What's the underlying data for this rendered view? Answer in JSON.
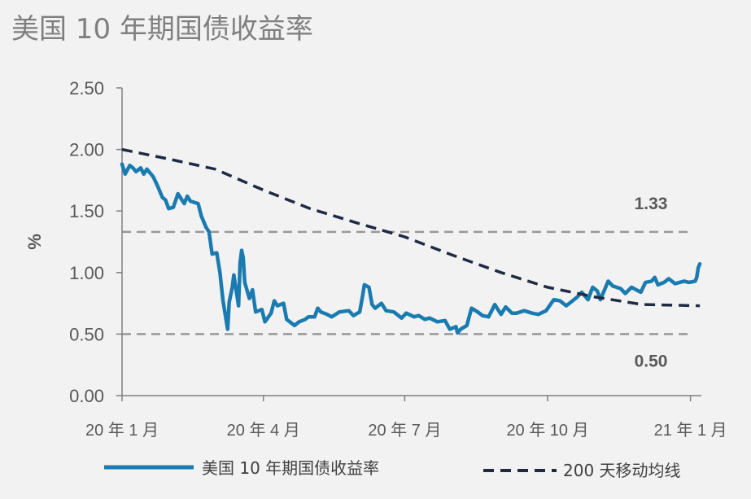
{
  "chart_data": {
    "type": "line",
    "title": "美国 10 年期国债收益率",
    "ylabel": "%",
    "ylim": [
      0,
      2.5
    ],
    "y_ticks": [
      "0.00",
      "0.50",
      "1.00",
      "1.50",
      "2.00",
      "2.50"
    ],
    "x_tick_labels": [
      "20 年 1 月",
      "20 年 4 月",
      "20 年 7 月",
      "20 年 10 月",
      "21 年 1 月"
    ],
    "x_ticks": [
      "2020-01-01",
      "2020-04-01",
      "2020-07-01",
      "2020-10-01",
      "2021-01-01"
    ],
    "xlim": [
      "2020-01-01",
      "2021-01-08"
    ],
    "grid": false,
    "legend_position": "bottom",
    "reference_lines": [
      {
        "value": 1.33,
        "label": "1.33"
      },
      {
        "value": 0.5,
        "label": "0.50"
      }
    ],
    "series": [
      {
        "name": "美国 10 年期国债收益率",
        "color": "#1a7bb0",
        "style": "solid",
        "points": [
          [
            "2020-01-01",
            1.88
          ],
          [
            "2020-01-03",
            1.8
          ],
          [
            "2020-01-06",
            1.87
          ],
          [
            "2020-01-08",
            1.85
          ],
          [
            "2020-01-10",
            1.82
          ],
          [
            "2020-01-13",
            1.85
          ],
          [
            "2020-01-15",
            1.8
          ],
          [
            "2020-01-17",
            1.84
          ],
          [
            "2020-01-21",
            1.78
          ],
          [
            "2020-01-24",
            1.7
          ],
          [
            "2020-01-27",
            1.61
          ],
          [
            "2020-01-29",
            1.59
          ],
          [
            "2020-01-31",
            1.52
          ],
          [
            "2020-02-03",
            1.53
          ],
          [
            "2020-02-06",
            1.64
          ],
          [
            "2020-02-10",
            1.56
          ],
          [
            "2020-02-12",
            1.62
          ],
          [
            "2020-02-14",
            1.58
          ],
          [
            "2020-02-19",
            1.56
          ],
          [
            "2020-02-21",
            1.46
          ],
          [
            "2020-02-24",
            1.37
          ],
          [
            "2020-02-26",
            1.33
          ],
          [
            "2020-02-28",
            1.15
          ],
          [
            "2020-03-02",
            1.16
          ],
          [
            "2020-03-04",
            1.0
          ],
          [
            "2020-03-06",
            0.77
          ],
          [
            "2020-03-09",
            0.54
          ],
          [
            "2020-03-10",
            0.76
          ],
          [
            "2020-03-12",
            0.88
          ],
          [
            "2020-03-13",
            0.98
          ],
          [
            "2020-03-16",
            0.73
          ],
          [
            "2020-03-17",
            1.08
          ],
          [
            "2020-03-18",
            1.18
          ],
          [
            "2020-03-19",
            1.12
          ],
          [
            "2020-03-20",
            0.92
          ],
          [
            "2020-03-23",
            0.79
          ],
          [
            "2020-03-25",
            0.86
          ],
          [
            "2020-03-27",
            0.68
          ],
          [
            "2020-03-31",
            0.7
          ],
          [
            "2020-04-02",
            0.6
          ],
          [
            "2020-04-06",
            0.67
          ],
          [
            "2020-04-08",
            0.77
          ],
          [
            "2020-04-10",
            0.73
          ],
          [
            "2020-04-14",
            0.75
          ],
          [
            "2020-04-16",
            0.62
          ],
          [
            "2020-04-21",
            0.57
          ],
          [
            "2020-04-24",
            0.6
          ],
          [
            "2020-04-28",
            0.62
          ],
          [
            "2020-04-30",
            0.64
          ],
          [
            "2020-05-04",
            0.64
          ],
          [
            "2020-05-06",
            0.71
          ],
          [
            "2020-05-08",
            0.68
          ],
          [
            "2020-05-12",
            0.66
          ],
          [
            "2020-05-15",
            0.64
          ],
          [
            "2020-05-20",
            0.68
          ],
          [
            "2020-05-26",
            0.69
          ],
          [
            "2020-05-29",
            0.65
          ],
          [
            "2020-06-02",
            0.68
          ],
          [
            "2020-06-04",
            0.82
          ],
          [
            "2020-06-05",
            0.9
          ],
          [
            "2020-06-08",
            0.88
          ],
          [
            "2020-06-10",
            0.74
          ],
          [
            "2020-06-12",
            0.71
          ],
          [
            "2020-06-16",
            0.75
          ],
          [
            "2020-06-19",
            0.69
          ],
          [
            "2020-06-24",
            0.68
          ],
          [
            "2020-06-29",
            0.63
          ],
          [
            "2020-07-02",
            0.67
          ],
          [
            "2020-07-07",
            0.64
          ],
          [
            "2020-07-10",
            0.65
          ],
          [
            "2020-07-14",
            0.62
          ],
          [
            "2020-07-17",
            0.63
          ],
          [
            "2020-07-22",
            0.6
          ],
          [
            "2020-07-27",
            0.61
          ],
          [
            "2020-07-30",
            0.54
          ],
          [
            "2020-08-03",
            0.56
          ],
          [
            "2020-08-04",
            0.51
          ],
          [
            "2020-08-06",
            0.54
          ],
          [
            "2020-08-10",
            0.57
          ],
          [
            "2020-08-13",
            0.71
          ],
          [
            "2020-08-17",
            0.68
          ],
          [
            "2020-08-20",
            0.65
          ],
          [
            "2020-08-24",
            0.64
          ],
          [
            "2020-08-26",
            0.69
          ],
          [
            "2020-08-28",
            0.74
          ],
          [
            "2020-09-01",
            0.66
          ],
          [
            "2020-09-04",
            0.72
          ],
          [
            "2020-09-08",
            0.67
          ],
          [
            "2020-09-11",
            0.67
          ],
          [
            "2020-09-16",
            0.69
          ],
          [
            "2020-09-21",
            0.67
          ],
          [
            "2020-09-25",
            0.66
          ],
          [
            "2020-09-30",
            0.69
          ],
          [
            "2020-10-05",
            0.78
          ],
          [
            "2020-10-09",
            0.77
          ],
          [
            "2020-10-13",
            0.73
          ],
          [
            "2020-10-16",
            0.76
          ],
          [
            "2020-10-20",
            0.8
          ],
          [
            "2020-10-23",
            0.84
          ],
          [
            "2020-10-27",
            0.78
          ],
          [
            "2020-10-30",
            0.88
          ],
          [
            "2020-11-02",
            0.85
          ],
          [
            "2020-11-04",
            0.78
          ],
          [
            "2020-11-09",
            0.93
          ],
          [
            "2020-11-12",
            0.89
          ],
          [
            "2020-11-17",
            0.87
          ],
          [
            "2020-11-20",
            0.83
          ],
          [
            "2020-11-24",
            0.88
          ],
          [
            "2020-11-30",
            0.84
          ],
          [
            "2020-12-03",
            0.92
          ],
          [
            "2020-12-07",
            0.93
          ],
          [
            "2020-12-09",
            0.96
          ],
          [
            "2020-12-11",
            0.9
          ],
          [
            "2020-12-15",
            0.92
          ],
          [
            "2020-12-18",
            0.95
          ],
          [
            "2020-12-22",
            0.91
          ],
          [
            "2020-12-28",
            0.93
          ],
          [
            "2020-12-31",
            0.92
          ],
          [
            "2021-01-04",
            0.93
          ],
          [
            "2021-01-05",
            0.96
          ],
          [
            "2021-01-06",
            1.04
          ],
          [
            "2021-01-07",
            1.07
          ]
        ]
      },
      {
        "name": "200 天移动均线",
        "color": "#1f2a44",
        "style": "dashed",
        "points": [
          [
            "2020-01-01",
            2.0
          ],
          [
            "2020-02-01",
            1.92
          ],
          [
            "2020-03-01",
            1.84
          ],
          [
            "2020-04-01",
            1.67
          ],
          [
            "2020-05-01",
            1.52
          ],
          [
            "2020-06-01",
            1.4
          ],
          [
            "2020-07-01",
            1.29
          ],
          [
            "2020-08-01",
            1.14
          ],
          [
            "2020-09-01",
            1.0
          ],
          [
            "2020-10-01",
            0.88
          ],
          [
            "2020-11-01",
            0.8
          ],
          [
            "2020-12-01",
            0.74
          ],
          [
            "2021-01-07",
            0.73
          ]
        ]
      }
    ]
  }
}
